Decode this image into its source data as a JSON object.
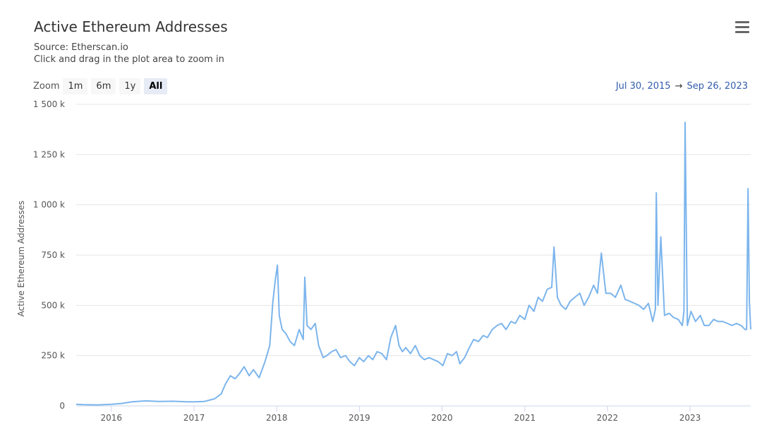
{
  "header": {
    "title": "Active Ethereum Addresses",
    "source": "Source: Etherscan.io",
    "hint": "Click and drag in the plot area to zoom in"
  },
  "menu": {
    "icon": "hamburger-menu-icon"
  },
  "zoom": {
    "label": "Zoom",
    "buttons": [
      "1m",
      "6m",
      "1y",
      "All"
    ],
    "active": "All"
  },
  "range": {
    "from": "Jul 30, 2015",
    "arrow": "→",
    "to": "Sep 26, 2023"
  },
  "colors": {
    "series": "#7cb5ec",
    "grid": "#e6e6e6",
    "axis": "#ccd6eb"
  },
  "chart_data": {
    "type": "line",
    "title": "Active Ethereum Addresses",
    "ylabel": "Active Ethereum Addresses",
    "xlabel": "",
    "x_range": [
      "2015-07-30",
      "2023-09-26"
    ],
    "ylim": [
      0,
      1500000
    ],
    "y_ticks": [
      0,
      250000,
      500000,
      750000,
      1000000,
      1250000,
      1500000
    ],
    "y_tick_labels": [
      "0",
      "250 k",
      "500 k",
      "750 k",
      "1 000 k",
      "1 250 k",
      "1 500 k"
    ],
    "x_tick_labels": [
      "2016",
      "2017",
      "2018",
      "2019",
      "2020",
      "2021",
      "2022",
      "2023"
    ],
    "x_ticks": [
      "2016-01-01",
      "2017-01-01",
      "2018-01-01",
      "2019-01-01",
      "2020-01-01",
      "2021-01-01",
      "2022-01-01",
      "2023-01-01"
    ],
    "grid": true,
    "legend": "none",
    "series": [
      {
        "x": [
          "2015-07-30",
          "2015-09-01",
          "2015-11-01",
          "2016-01-01",
          "2016-02-15",
          "2016-04-01",
          "2016-06-01",
          "2016-08-01",
          "2016-10-01",
          "2016-12-01",
          "2017-01-01",
          "2017-02-15",
          "2017-04-01",
          "2017-05-01",
          "2017-05-20",
          "2017-06-10",
          "2017-07-01",
          "2017-07-20",
          "2017-08-10",
          "2017-09-01",
          "2017-09-20",
          "2017-10-15",
          "2017-11-10",
          "2017-12-01",
          "2017-12-15",
          "2017-12-25",
          "2018-01-04",
          "2018-01-12",
          "2018-01-25",
          "2018-02-10",
          "2018-03-01",
          "2018-03-20",
          "2018-04-10",
          "2018-04-28",
          "2018-05-05",
          "2018-05-15",
          "2018-06-01",
          "2018-06-20",
          "2018-07-05",
          "2018-07-25",
          "2018-08-10",
          "2018-09-01",
          "2018-09-20",
          "2018-10-10",
          "2018-11-01",
          "2018-11-20",
          "2018-12-10",
          "2019-01-01",
          "2019-01-20",
          "2019-02-10",
          "2019-03-01",
          "2019-03-20",
          "2019-04-10",
          "2019-05-01",
          "2019-05-20",
          "2019-06-10",
          "2019-06-25",
          "2019-07-10",
          "2019-07-25",
          "2019-08-15",
          "2019-09-05",
          "2019-09-25",
          "2019-10-15",
          "2019-11-05",
          "2019-11-25",
          "2019-12-15",
          "2020-01-05",
          "2020-01-25",
          "2020-02-15",
          "2020-03-05",
          "2020-03-20",
          "2020-04-10",
          "2020-05-01",
          "2020-05-20",
          "2020-06-10",
          "2020-07-01",
          "2020-07-20",
          "2020-08-10",
          "2020-09-01",
          "2020-09-20",
          "2020-10-10",
          "2020-11-01",
          "2020-11-20",
          "2020-12-10",
          "2021-01-01",
          "2021-01-20",
          "2021-02-10",
          "2021-03-01",
          "2021-03-20",
          "2021-04-10",
          "2021-04-30",
          "2021-05-10",
          "2021-05-25",
          "2021-06-10",
          "2021-07-01",
          "2021-07-20",
          "2021-08-10",
          "2021-09-01",
          "2021-09-20",
          "2021-10-10",
          "2021-11-01",
          "2021-11-18",
          "2021-12-05",
          "2021-12-25",
          "2022-01-15",
          "2022-02-05",
          "2022-03-01",
          "2022-03-20",
          "2022-04-10",
          "2022-05-01",
          "2022-05-20",
          "2022-06-10",
          "2022-07-01",
          "2022-07-20",
          "2022-08-01",
          "2022-08-05",
          "2022-08-12",
          "2022-08-25",
          "2022-09-10",
          "2022-10-01",
          "2022-10-20",
          "2022-11-10",
          "2022-11-28",
          "2022-12-05",
          "2022-12-10",
          "2022-12-20",
          "2023-01-05",
          "2023-01-25",
          "2023-02-15",
          "2023-03-05",
          "2023-03-25",
          "2023-04-15",
          "2023-05-05",
          "2023-05-25",
          "2023-06-15",
          "2023-07-05",
          "2023-07-25",
          "2023-08-15",
          "2023-09-01",
          "2023-09-08",
          "2023-09-14",
          "2023-09-20",
          "2023-09-26"
        ],
        "y": [
          8000,
          6000,
          5000,
          8000,
          12000,
          20000,
          25000,
          22000,
          23000,
          20000,
          20000,
          22000,
          35000,
          60000,
          110000,
          150000,
          135000,
          160000,
          195000,
          150000,
          180000,
          140000,
          220000,
          300000,
          520000,
          620000,
          700000,
          450000,
          380000,
          360000,
          320000,
          300000,
          380000,
          330000,
          640000,
          400000,
          380000,
          410000,
          300000,
          240000,
          250000,
          270000,
          280000,
          240000,
          250000,
          220000,
          200000,
          240000,
          220000,
          250000,
          230000,
          270000,
          260000,
          230000,
          340000,
          400000,
          300000,
          270000,
          290000,
          260000,
          300000,
          250000,
          230000,
          240000,
          230000,
          220000,
          200000,
          260000,
          250000,
          270000,
          210000,
          240000,
          290000,
          330000,
          320000,
          350000,
          340000,
          380000,
          400000,
          410000,
          380000,
          420000,
          410000,
          450000,
          430000,
          500000,
          470000,
          540000,
          520000,
          580000,
          590000,
          790000,
          540000,
          500000,
          480000,
          520000,
          540000,
          560000,
          500000,
          540000,
          600000,
          560000,
          760000,
          560000,
          560000,
          540000,
          600000,
          530000,
          520000,
          510000,
          500000,
          480000,
          510000,
          420000,
          480000,
          1060000,
          500000,
          840000,
          450000,
          460000,
          440000,
          430000,
          400000,
          470000,
          1410000,
          400000,
          470000,
          420000,
          450000,
          400000,
          400000,
          430000,
          420000,
          420000,
          410000,
          400000,
          410000,
          400000,
          380000,
          380000,
          1080000,
          520000,
          380000
        ]
      }
    ]
  }
}
